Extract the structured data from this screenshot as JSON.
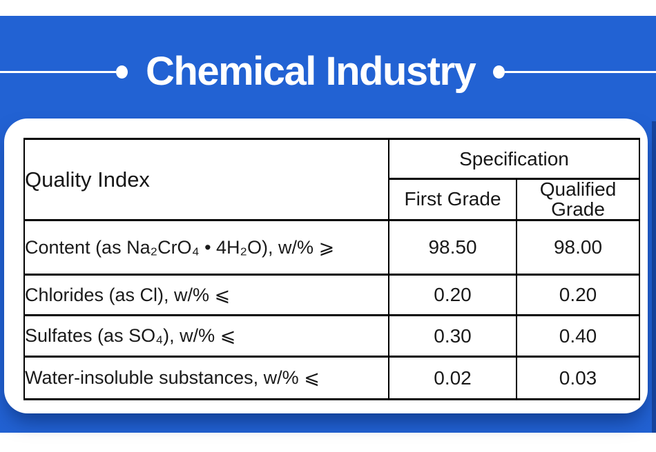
{
  "page": {
    "title": "Chemical Industry"
  },
  "table": {
    "quality_index_header": "Quality Index",
    "specification_header": "Specification",
    "columns": {
      "first": "First Grade",
      "qualified": "Qualified Grade"
    },
    "rows": [
      {
        "label": "Content (as Na₂CrO₄ • 4H₂O), w/% ⩾",
        "first_grade": "98.50",
        "qualified_grade": "98.00"
      },
      {
        "label": "Chlorides (as Cl), w/% ⩽",
        "first_grade": "0.20",
        "qualified_grade": "0.20"
      },
      {
        "label": "Sulfates (as SO₄), w/% ⩽",
        "first_grade": "0.30",
        "qualified_grade": "0.40"
      },
      {
        "label": "Water-insoluble substances, w/% ⩽",
        "first_grade": "0.02",
        "qualified_grade": "0.03"
      }
    ]
  },
  "colors": {
    "banner_blue": "#2262d3",
    "edge_shadow_blue": "#143f92",
    "card_white": "#ffffff",
    "table_border_black": "#000000",
    "text_dark": "#1a1a1a",
    "accent_white": "#ffffff"
  }
}
